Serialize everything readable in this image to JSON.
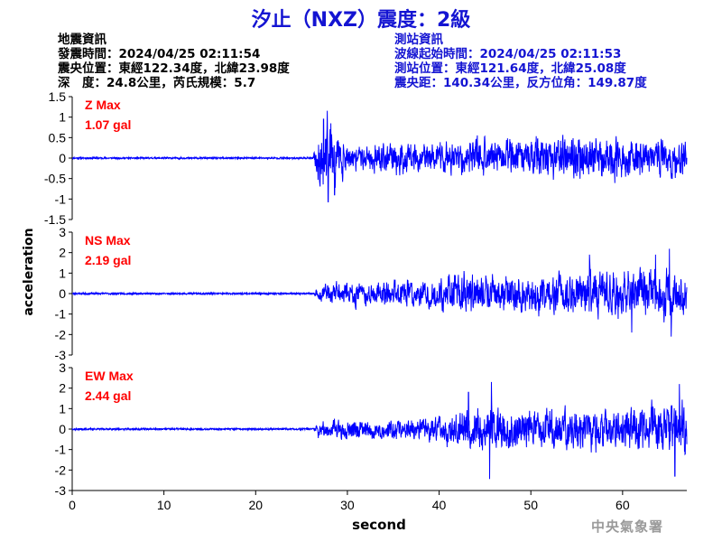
{
  "header": {
    "title": "汐止（NXZ）震度：2級"
  },
  "earthquake_info": {
    "heading": "地震資訊",
    "origin_time": "發震時間：2024/04/25 02:11:54",
    "epicenter": "震央位置：東經122.34度，北緯23.98度",
    "depth_magnitude": "深　度：24.8公里，芮氏規模：5.7"
  },
  "station_info": {
    "heading": "測站資訊",
    "wave_onset_time": "波線起始時間：2024/04/25 02:11:53",
    "station_location": "測站位置：東經121.64度，北緯25.08度",
    "distance_azimuth": "震央距：140.34公里，反方位角：149.87度"
  },
  "axes": {
    "ylabel": "acceleration",
    "xlabel": "second"
  },
  "watermark": "中央氣象署",
  "colors": {
    "title": "#1414d2",
    "trace": "#0000ff",
    "max_label": "#ff0000",
    "station_info": "#1414d2"
  },
  "chart_data": {
    "type": "line",
    "xlabel": "second",
    "ylabel": "acceleration",
    "xlim": [
      0,
      67
    ],
    "x_ticks": [
      0,
      10,
      20,
      30,
      40,
      50,
      60
    ],
    "duration": 67,
    "onset": 26.3,
    "panels": [
      {
        "component": "Z",
        "max_label": "Z Max",
        "max_value": "1.07 gal",
        "ylim": [
          -1.5,
          1.5
        ],
        "y_ticks": [
          -1.5,
          -1,
          -0.5,
          0,
          0.5,
          1,
          1.5
        ],
        "y_tick_labels": [
          "-1.5",
          "-1",
          "-0.5",
          "0",
          "0.5",
          "1",
          "1.5"
        ],
        "pre_noise": 0.02,
        "envelope_t": [
          26.3,
          27,
          28,
          29,
          30,
          32,
          35,
          40,
          45,
          50,
          55,
          60,
          65,
          67
        ],
        "envelope_a": [
          0.05,
          0.8,
          1.0,
          0.5,
          0.3,
          0.3,
          0.4,
          0.35,
          0.45,
          0.45,
          0.55,
          0.5,
          0.45,
          0.4
        ],
        "peaks": [
          [
            27.4,
            0.95
          ],
          [
            27.9,
            -1.07
          ],
          [
            28.2,
            0.85
          ],
          [
            28.6,
            -0.9
          ]
        ],
        "seed": 11
      },
      {
        "component": "NS",
        "max_label": "NS Max",
        "max_value": "2.19 gal",
        "ylim": [
          -3,
          3
        ],
        "y_ticks": [
          -3,
          -2,
          -1,
          0,
          1,
          2,
          3
        ],
        "y_tick_labels": [
          "-3",
          "-2",
          "-1",
          "0",
          "1",
          "2",
          "3"
        ],
        "pre_noise": 0.04,
        "envelope_t": [
          26.3,
          27,
          29,
          32,
          35,
          40,
          42,
          45,
          50,
          55,
          60,
          63,
          65,
          67
        ],
        "envelope_a": [
          0.1,
          0.4,
          0.55,
          0.55,
          0.6,
          0.65,
          1.0,
          0.85,
          0.9,
          1.0,
          1.05,
          1.2,
          1.25,
          1.0
        ],
        "peaks": [
          [
            65.1,
            2.19
          ],
          [
            65.3,
            -2.1
          ],
          [
            63.6,
            1.9
          ],
          [
            61.0,
            -1.9
          ],
          [
            56.4,
            1.9
          ]
        ],
        "seed": 23
      },
      {
        "component": "EW",
        "max_label": "EW Max",
        "max_value": "2.44 gal",
        "ylim": [
          -3,
          3
        ],
        "y_ticks": [
          -3,
          -2,
          -1,
          0,
          1,
          2,
          3
        ],
        "y_tick_labels": [
          "-3",
          "-2",
          "-1",
          "0",
          "1",
          "2",
          "3"
        ],
        "pre_noise": 0.04,
        "envelope_t": [
          26.3,
          27,
          29,
          32,
          35,
          40,
          42,
          45,
          50,
          55,
          60,
          63,
          65,
          67
        ],
        "envelope_a": [
          0.1,
          0.45,
          0.5,
          0.45,
          0.5,
          0.6,
          0.95,
          1.05,
          1.0,
          0.95,
          1.0,
          1.1,
          1.2,
          1.2
        ],
        "peaks": [
          [
            45.7,
            2.3
          ],
          [
            45.5,
            -2.44
          ],
          [
            66.2,
            2.2
          ],
          [
            65.7,
            -2.3
          ],
          [
            43.2,
            1.8
          ]
        ],
        "seed": 37
      }
    ]
  }
}
